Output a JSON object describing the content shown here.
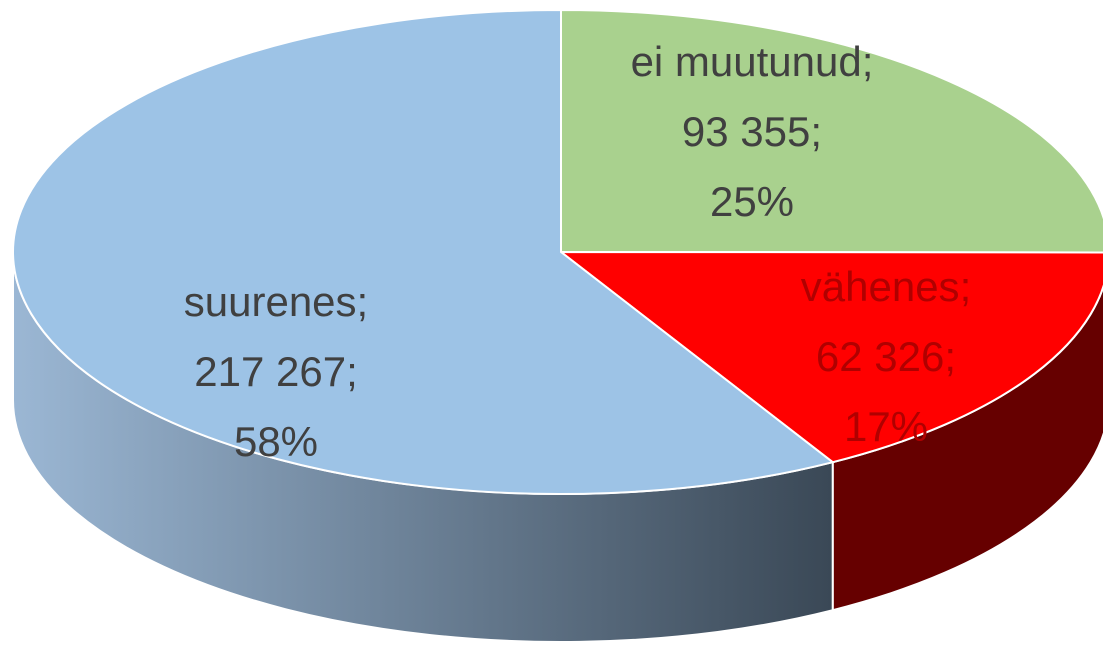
{
  "chart_data": {
    "type": "pie3d",
    "categories": [
      "ei muutunud",
      "vähenes",
      "suurenes"
    ],
    "values": [
      93355,
      62326,
      217267
    ],
    "value_labels": [
      "93 355",
      "62 326",
      "217 267"
    ],
    "percents": [
      25,
      17,
      58
    ],
    "percent_labels": [
      "25%",
      "17%",
      "58%"
    ],
    "separator": ";",
    "colors": [
      "#a9d18e",
      "#ff0000",
      "#9dc3e6"
    ],
    "side_colors": [
      "#6f8a5c",
      "#660000",
      "#7f9bb8"
    ],
    "label_colors": [
      "#404040",
      "#b00000",
      "#404040"
    ]
  }
}
